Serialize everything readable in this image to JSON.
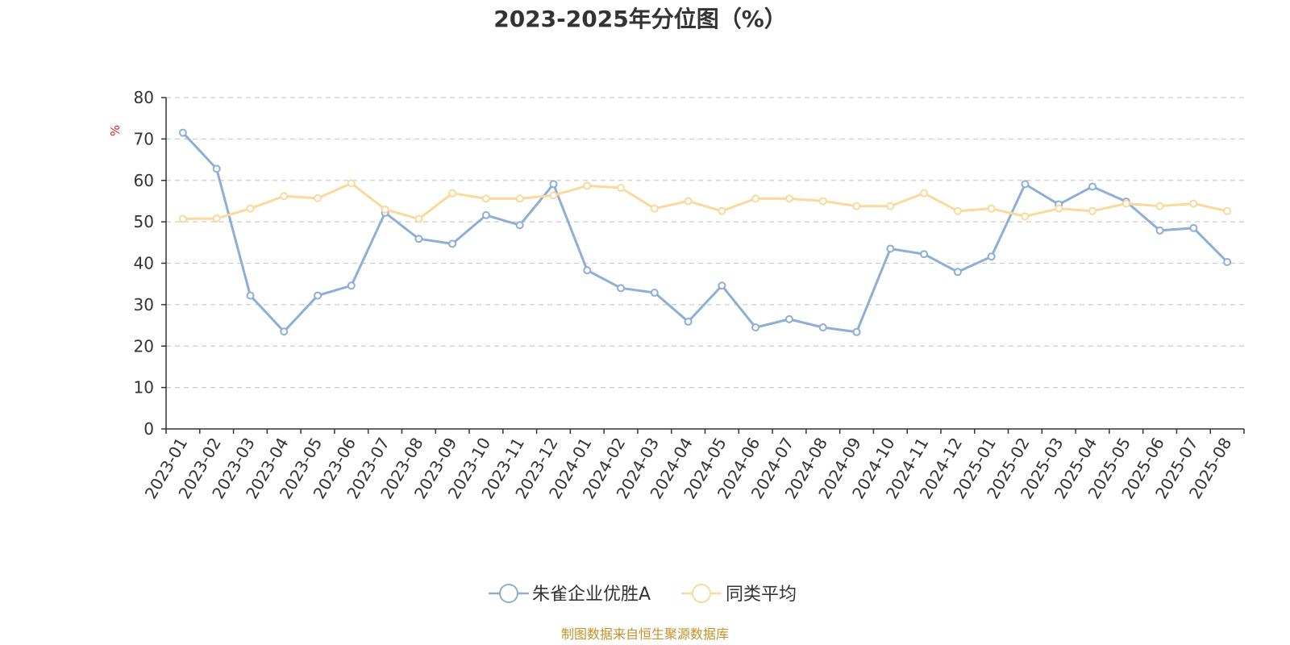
{
  "chart_data": {
    "type": "line",
    "title": "2023-2025年分位图（%）",
    "y_unit": "%",
    "ylim": [
      0,
      80
    ],
    "y_ticks": [
      "0",
      "10",
      "20",
      "30",
      "40",
      "50",
      "60",
      "70",
      "80"
    ],
    "grid": "horizontal-dashed",
    "legend_position": "bottom-center",
    "categories": [
      "2023-01",
      "2023-02",
      "2023-03",
      "2023-04",
      "2023-05",
      "2023-06",
      "2023-07",
      "2023-08",
      "2023-09",
      "2023-10",
      "2023-11",
      "2023-12",
      "2024-01",
      "2024-02",
      "2024-03",
      "2024-04",
      "2024-05",
      "2024-06",
      "2024-07",
      "2024-08",
      "2024-09",
      "2024-10",
      "2024-11",
      "2024-12",
      "2025-01",
      "2025-02",
      "2025-03",
      "2025-04",
      "2025-05",
      "2025-06",
      "2025-07",
      "2025-08"
    ],
    "series": [
      {
        "name": "朱雀企业优胜A",
        "color": "#8eaed8",
        "values": [
          71.5,
          62.8,
          32.2,
          23.5,
          32.2,
          34.6,
          52.2,
          45.9,
          44.7,
          51.6,
          49.2,
          59.1,
          38.3,
          34.0,
          32.9,
          25.9,
          34.6,
          24.5,
          26.5,
          24.5,
          23.4,
          43.5,
          42.2,
          37.9,
          41.6,
          59.1,
          54.2,
          58.5,
          54.9,
          47.9,
          48.5,
          40.3
        ]
      },
      {
        "name": "同类平均",
        "color": "#fad99a",
        "values": [
          50.7,
          50.8,
          53.2,
          56.2,
          55.7,
          59.3,
          53.0,
          50.7,
          56.9,
          55.6,
          55.6,
          56.4,
          58.7,
          58.2,
          53.2,
          55.0,
          52.6,
          55.6,
          55.6,
          55.0,
          53.8,
          53.8,
          56.9,
          52.6,
          53.2,
          51.3,
          53.2,
          52.6,
          54.4,
          53.8,
          54.4,
          52.6
        ]
      }
    ],
    "source": "制图数据来自恒生聚源数据库",
    "source_color": "#c8902a",
    "unit_color": "#e02020",
    "axis_color": "#333333",
    "grid_color": "#cccccc"
  }
}
